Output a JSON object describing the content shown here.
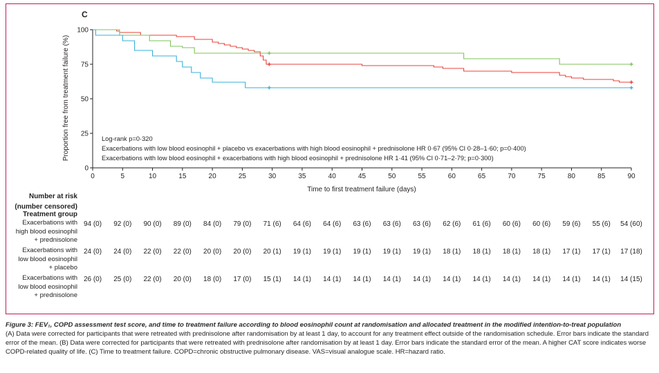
{
  "panel_label": "C",
  "chart_data": {
    "type": "line",
    "subtype": "kaplan-meier",
    "xlabel": "Time to first treatment failure (days)",
    "ylabel": "Proportion free from treatment failure (%)",
    "xlim": [
      0,
      90
    ],
    "ylim": [
      0,
      100
    ],
    "xticks": [
      0,
      5,
      10,
      15,
      20,
      25,
      30,
      35,
      40,
      45,
      50,
      55,
      60,
      65,
      70,
      75,
      80,
      85,
      90
    ],
    "yticks": [
      0,
      25,
      50,
      75,
      100
    ],
    "annotations": [
      "Log-rank p=0·320",
      "Exacerbations with low blood eosinophil + placebo vs exacerbations with high blood eosinophil + prednisolone HR 0·67 (95% CI 0·28–1·60; p=0·400)",
      "Exacerbations with low blood eosinophil + exacerbations with high blood eosinophil + prednisolone  HR 1·41 (95% CI 0·71–2·79; p=0·300)"
    ],
    "series": [
      {
        "color": "#e8403a",
        "steps": [
          [
            0,
            100
          ],
          [
            4,
            99
          ],
          [
            4.5,
            98
          ],
          [
            8,
            96
          ],
          [
            14,
            95
          ],
          [
            17,
            93
          ],
          [
            20,
            91
          ],
          [
            21,
            90
          ],
          [
            22,
            89
          ],
          [
            23,
            88
          ],
          [
            24,
            87
          ],
          [
            25,
            86
          ],
          [
            26,
            85
          ],
          [
            27,
            84
          ],
          [
            28,
            81
          ],
          [
            28.5,
            78
          ],
          [
            29,
            75
          ],
          [
            45,
            74
          ],
          [
            57,
            73
          ],
          [
            58.5,
            72
          ],
          [
            62,
            70
          ],
          [
            70,
            69
          ],
          [
            78,
            67
          ],
          [
            79,
            66
          ],
          [
            80,
            65
          ],
          [
            82,
            64
          ],
          [
            87,
            63
          ],
          [
            88,
            62
          ]
        ],
        "censors": [
          [
            29.5,
            75
          ],
          [
            90,
            62
          ]
        ]
      },
      {
        "color": "#7cc35a",
        "steps": [
          [
            0,
            100
          ],
          [
            4.5,
            96
          ],
          [
            9.5,
            92
          ],
          [
            13,
            88
          ],
          [
            15,
            87
          ],
          [
            17,
            83
          ],
          [
            62,
            79
          ],
          [
            78,
            75
          ]
        ],
        "censors": [
          [
            29.5,
            83
          ],
          [
            90,
            75
          ]
        ]
      },
      {
        "color": "#34b0d8",
        "steps": [
          [
            0,
            100
          ],
          [
            0.5,
            96
          ],
          [
            5,
            92
          ],
          [
            7,
            85
          ],
          [
            10,
            81
          ],
          [
            14,
            77
          ],
          [
            15,
            73
          ],
          [
            16.5,
            69
          ],
          [
            18,
            65
          ],
          [
            20,
            62
          ],
          [
            25.5,
            58
          ],
          [
            27,
            58
          ]
        ],
        "censors": [
          [
            29.5,
            58
          ],
          [
            90,
            58
          ]
        ]
      }
    ]
  },
  "risk_table": {
    "heading": [
      "Number at risk",
      "(number censored)"
    ],
    "group_heading": "Treatment group",
    "rows": [
      {
        "label": [
          "Exacerbations with",
          "high blood eosinophil",
          "+ prednisolone"
        ],
        "values": [
          "94 (0)",
          "92 (0)",
          "90 (0)",
          "89 (0)",
          "84 (0)",
          "79 (0)",
          "71 (6)",
          "64 (6)",
          "64 (6)",
          "63 (6)",
          "63 (6)",
          "63 (6)",
          "62 (6)",
          "61 (6)",
          "60 (6)",
          "60 (6)",
          "59 (6)",
          "55 (6)",
          "54 (60)"
        ]
      },
      {
        "label": [
          "Exacerbations with",
          "low blood eosinophil",
          "+ placebo"
        ],
        "values": [
          "24 (0)",
          "24 (0)",
          "22 (0)",
          "22 (0)",
          "20 (0)",
          "20 (0)",
          "20 (1)",
          "19 (1)",
          "19 (1)",
          "19 (1)",
          "19 (1)",
          "19 (1)",
          "18 (1)",
          "18 (1)",
          "18 (1)",
          "18 (1)",
          "17 (1)",
          "17 (1)",
          "17 (18)"
        ]
      },
      {
        "label": [
          "Exacerbations with",
          "low blood eosinophil",
          "+ prednisolone"
        ],
        "values": [
          "26 (0)",
          "25 (0)",
          "22 (0)",
          "20 (0)",
          "18 (0)",
          "17 (0)",
          "15 (1)",
          "14 (1)",
          "14 (1)",
          "14 (1)",
          "14 (1)",
          "14 (1)",
          "14 (1)",
          "14 (1)",
          "14 (1)",
          "14 (1)",
          "14 (1)",
          "14 (1)",
          "14 (15)"
        ]
      }
    ]
  },
  "caption": {
    "lead": "Figure 3: ",
    "title": "FEV₁, COPD assessment test score, and time to treatment failure according to blood eosinophil count at randomisation and allocated treatment in the modified intention-to-treat population",
    "body": "(A) Data were corrected for participants that were retreated with prednisolone after randomisation by at least 1 day, to account for any treatment effect outside of the randomisation schedule. Error bars indicate the standard error of the mean. (B) Data were corrected for participants that were retreated with prednisolone after randomisation by at least 1 day. Error bars indicate the standard error of the mean. A higher CAT score indicates worse COPD-related quality of life. (C) Time to treatment failure. COPD=chronic obstructive pulmonary disease. VAS=visual analogue scale. HR=hazard ratio."
  }
}
